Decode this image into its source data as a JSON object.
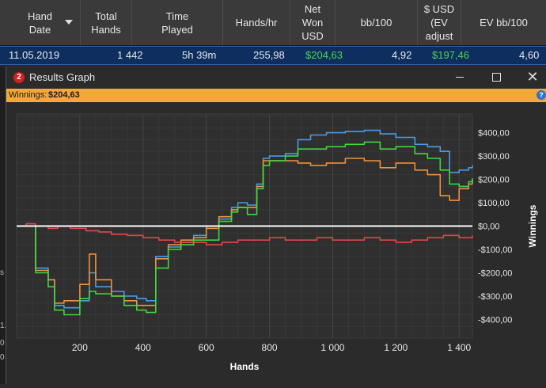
{
  "table": {
    "columns": [
      {
        "label": "Hand\nDate",
        "sorted": true
      },
      {
        "label": "Total\nHands"
      },
      {
        "label": "Time\nPlayed"
      },
      {
        "label": "Hands/hr"
      },
      {
        "label": "Net\nWon\nUSD"
      },
      {
        "label": "bb/100"
      },
      {
        "label": "$ USD\n(EV\nadjust"
      },
      {
        "label": "EV bb/100"
      }
    ],
    "row": {
      "hand_date": "11.05.2019",
      "total_hands": "1 442",
      "time_played": "5h 39m",
      "hands_hr": "255,98",
      "net_won": "$204,63",
      "bb100": "4,92",
      "ev_adjusted": "$197,46",
      "ev_bb100": "4,60"
    }
  },
  "left_strip_chars": [
    "s",
    "1.",
    "0",
    "0"
  ],
  "window": {
    "badge": "2",
    "title": "Results Graph",
    "winnings_label": "Winnings:",
    "winnings_value": "$204,63",
    "help_icon": "?"
  },
  "colors": {
    "net_won": "#3fd83f",
    "all_in_ev": "#f0923a",
    "showdown": "#4a9be8",
    "non_showdown": "#e04848",
    "zero_line": "#ffffff"
  },
  "chart_data": {
    "type": "line",
    "xlabel": "Hands",
    "ylabel": "Winnings",
    "xlim": [
      0,
      1442
    ],
    "ylim": [
      -480,
      480
    ],
    "x_ticks": [
      200,
      400,
      600,
      800,
      1000,
      1200,
      1400
    ],
    "x_tick_labels": [
      "200",
      "400",
      "600",
      "800",
      "1 000",
      "1 200",
      "1 400"
    ],
    "y_ticks": [
      400,
      300,
      200,
      100,
      0,
      -100,
      -200,
      -300,
      -400
    ],
    "y_tick_labels": [
      "$400,00",
      "$300,00",
      "$200,00",
      "$100,00",
      "$0,00",
      "-$100,00",
      "-$200,00",
      "-$300,00",
      "-$400,00"
    ],
    "grid": true,
    "series": [
      {
        "color_key": "showdown",
        "x": [
          0,
          30,
          60,
          100,
          120,
          150,
          200,
          230,
          250,
          300,
          340,
          380,
          410,
          440,
          480,
          520,
          560,
          600,
          640,
          680,
          700,
          730,
          760,
          780,
          800,
          850,
          890,
          930,
          980,
          1040,
          1100,
          1150,
          1200,
          1260,
          1300,
          1340,
          1370,
          1400,
          1430,
          1442
        ],
        "y": [
          0,
          0,
          -180,
          -230,
          -340,
          -350,
          -320,
          -200,
          -260,
          -280,
          -300,
          -310,
          -320,
          -130,
          -90,
          -70,
          -40,
          0,
          30,
          80,
          100,
          90,
          180,
          290,
          300,
          310,
          370,
          390,
          400,
          405,
          410,
          395,
          380,
          350,
          340,
          320,
          230,
          240,
          250,
          260
        ]
      },
      {
        "color_key": "all_in_ev",
        "x": [
          0,
          30,
          60,
          100,
          120,
          150,
          200,
          230,
          250,
          300,
          340,
          380,
          410,
          440,
          480,
          520,
          560,
          600,
          640,
          680,
          700,
          730,
          760,
          780,
          800,
          850,
          890,
          930,
          980,
          1040,
          1100,
          1150,
          1200,
          1260,
          1300,
          1340,
          1370,
          1400,
          1430,
          1442
        ],
        "y": [
          0,
          0,
          -190,
          -230,
          -330,
          -320,
          -250,
          -120,
          -230,
          -300,
          -320,
          -340,
          -340,
          -140,
          -80,
          -60,
          -50,
          -10,
          40,
          70,
          80,
          80,
          170,
          280,
          280,
          280,
          270,
          260,
          270,
          290,
          280,
          250,
          270,
          240,
          220,
          130,
          110,
          160,
          180,
          200
        ]
      },
      {
        "color_key": "net_won",
        "x": [
          0,
          30,
          60,
          100,
          120,
          150,
          200,
          230,
          250,
          300,
          340,
          380,
          410,
          440,
          480,
          520,
          560,
          600,
          640,
          680,
          700,
          730,
          760,
          780,
          800,
          850,
          890,
          930,
          980,
          1040,
          1100,
          1150,
          1200,
          1260,
          1300,
          1340,
          1370,
          1400,
          1430,
          1442
        ],
        "y": [
          0,
          0,
          -200,
          -260,
          -360,
          -380,
          -310,
          -280,
          -290,
          -300,
          -340,
          -360,
          -370,
          -180,
          -100,
          -80,
          -60,
          -60,
          20,
          60,
          80,
          50,
          160,
          260,
          280,
          300,
          330,
          330,
          340,
          350,
          360,
          330,
          340,
          310,
          290,
          240,
          180,
          170,
          190,
          205
        ]
      },
      {
        "color_key": "non_showdown",
        "x": [
          0,
          30,
          60,
          100,
          130,
          170,
          220,
          260,
          300,
          350,
          400,
          450,
          500,
          550,
          600,
          650,
          700,
          750,
          800,
          850,
          900,
          950,
          1000,
          1050,
          1100,
          1150,
          1200,
          1250,
          1300,
          1350,
          1400,
          1442
        ],
        "y": [
          0,
          10,
          0,
          -10,
          0,
          -10,
          -20,
          -25,
          -35,
          -40,
          -50,
          -60,
          -70,
          -70,
          -80,
          -70,
          -60,
          -60,
          -50,
          -60,
          -60,
          -50,
          -60,
          -60,
          -50,
          -60,
          -70,
          -60,
          -50,
          -40,
          -50,
          -40
        ]
      },
      {
        "color_key": "zero_line",
        "x": [
          0,
          1442
        ],
        "y": [
          0,
          0
        ]
      }
    ]
  }
}
